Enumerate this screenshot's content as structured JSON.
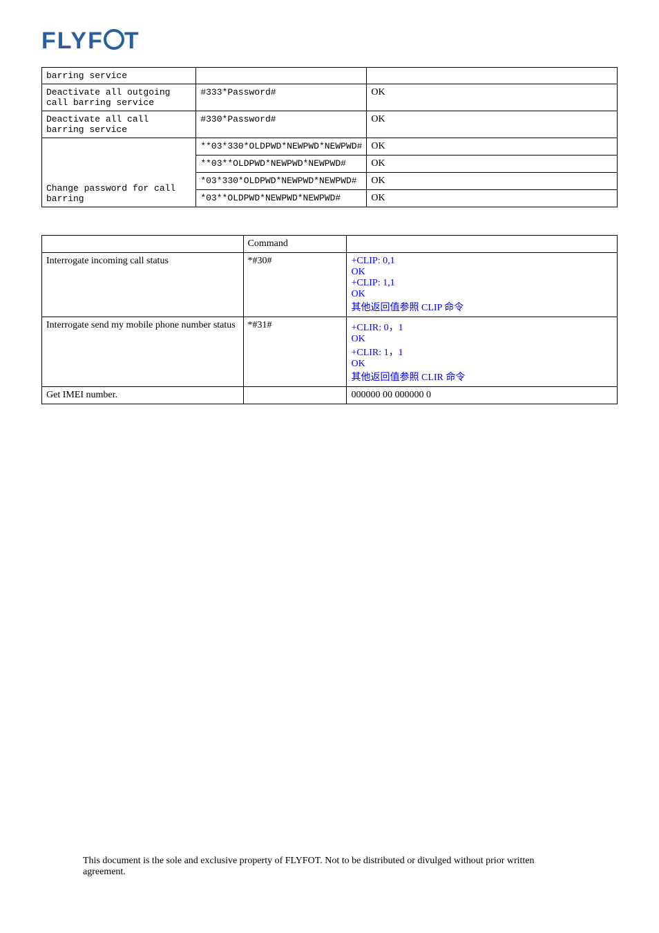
{
  "logo_text": "FLYFOT",
  "table1": {
    "rows": [
      {
        "c1": "barring service",
        "c2": "",
        "c3": ""
      },
      {
        "c1": "Deactivate all outgoing call barring service",
        "c2": "#333*Password#",
        "c3": "OK"
      },
      {
        "c1": "Deactivate all call barring service",
        "c2": "#330*Password#",
        "c3": "OK"
      },
      {
        "group_c1": "Change password for call barring",
        "subrows": [
          {
            "c2": "**03*330*OLDPWD*NEWPWD*NEWPWD#",
            "c3": "OK"
          },
          {
            "c2": "**03**OLDPWD*NEWPWD*NEWPWD#",
            "c3": "OK"
          },
          {
            "c2": "*03*330*OLDPWD*NEWPWD*NEWPWD#",
            "c3": "OK"
          },
          {
            "c2": "*03**OLDPWD*NEWPWD*NEWPWD#",
            "c3": "OK"
          }
        ]
      }
    ]
  },
  "table2": {
    "header": {
      "c1": "",
      "c2": "Command",
      "c3": ""
    },
    "rows": [
      {
        "c1": "Interrogate incoming call status",
        "c2": "*#30#",
        "c3_lines": [
          {
            "text": "+CLIP: 0,1",
            "blue": true
          },
          {
            "text": "OK",
            "blue": true
          },
          {
            "text": "+CLIP: 1,1",
            "blue": true
          },
          {
            "text": "OK",
            "blue": true
          },
          {
            "text": "其他返回值参照 CLIP 命令",
            "blue": true
          }
        ]
      },
      {
        "c1": "Interrogate send my mobile phone number status",
        "c2": "*#31#",
        "c3_lines": [
          {
            "text": "+CLIR: 0，1",
            "blue": true
          },
          {
            "text": "OK",
            "blue": true
          },
          {
            "text": "+CLIR: 1，1",
            "blue": true
          },
          {
            "text": "OK",
            "blue": true
          },
          {
            "text": "其他返回值参照 CLIR 命令",
            "blue": true
          }
        ]
      },
      {
        "c1": "Get IMEI number.",
        "c2": "",
        "c3_lines": [
          {
            "text": "000000 00 000000 0",
            "blue": false
          }
        ]
      }
    ]
  },
  "footer": "This document is the sole and exclusive property of FLYFOT. Not to be distributed or divulged without prior written agreement."
}
